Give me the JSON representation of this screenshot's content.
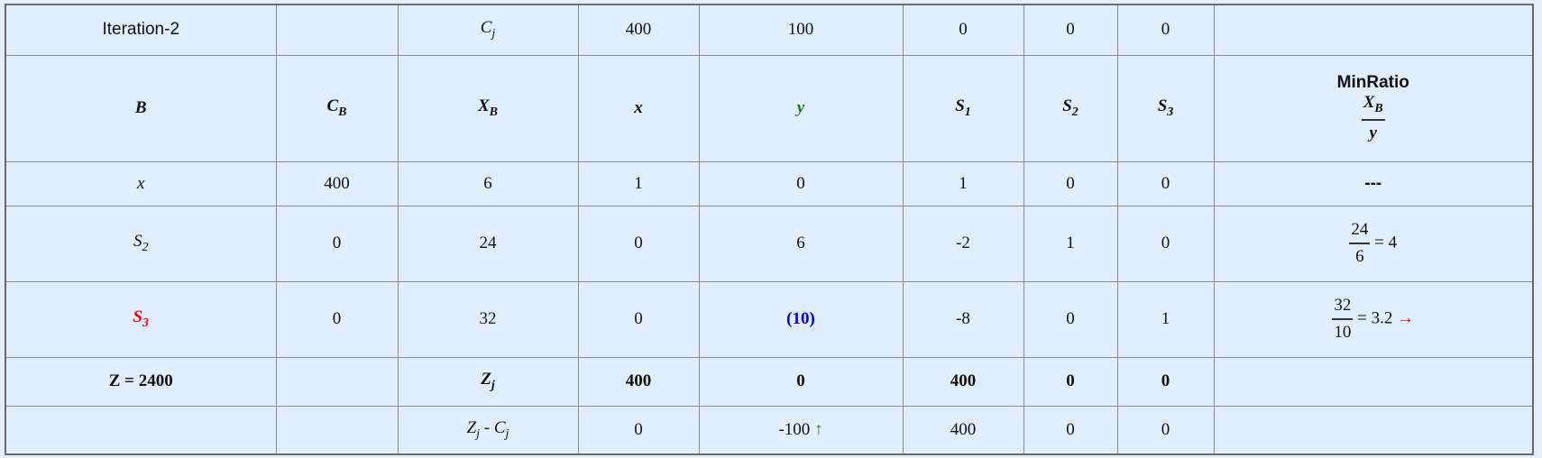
{
  "iteration_label": "Iteration-2",
  "cj_row": {
    "label_main": "C",
    "label_sub": "j",
    "values": [
      "400",
      "100",
      "0",
      "0",
      "0"
    ]
  },
  "header": {
    "b": "B",
    "cb_main": "C",
    "cb_sub": "B",
    "xb_main": "X",
    "xb_sub": "B",
    "x": "x",
    "y": "y",
    "s1_main": "S",
    "s1_sub": "1",
    "s2_main": "S",
    "s2_sub": "2",
    "s3_main": "S",
    "s3_sub": "3",
    "minratio": "MinRatio",
    "minratio_num_main": "X",
    "minratio_num_sub": "B",
    "minratio_den": "y"
  },
  "rows": [
    {
      "basis_main": "x",
      "basis_sub": "",
      "cb": "400",
      "xb": "6",
      "x": "1",
      "y": "0",
      "s1": "1",
      "s2": "0",
      "s3": "0",
      "ratio_text": "---"
    },
    {
      "basis_main": "S",
      "basis_sub": "2",
      "cb": "0",
      "xb": "24",
      "x": "0",
      "y": "6",
      "s1": "-2",
      "s2": "1",
      "s3": "0",
      "ratio_num": "24",
      "ratio_den": "6",
      "ratio_eq": "= 4"
    },
    {
      "basis_main": "S",
      "basis_sub": "3",
      "cb": "0",
      "xb": "32",
      "x": "0",
      "y": "(10)",
      "s1": "-8",
      "s2": "0",
      "s3": "1",
      "ratio_num": "32",
      "ratio_den": "10",
      "ratio_eq": "= 3.2",
      "ratio_arrow": "→"
    }
  ],
  "zj_row": {
    "z_label": "Z = 2400",
    "label_main": "Z",
    "label_sub": "j",
    "values": [
      "400",
      "0",
      "400",
      "0",
      "0"
    ]
  },
  "zjcj_row": {
    "label_z": "Z",
    "label_z_sub": "j",
    "label_mid": " - ",
    "label_c": "C",
    "label_c_sub": "j",
    "values": [
      "0",
      "-100",
      "400",
      "0",
      "0"
    ],
    "entering_arrow": "↑"
  },
  "colors": {
    "background": "#e0eefb",
    "entering_column": "#1a7a1a",
    "leaving_row": "#ff0000",
    "pivot": "#0000ee",
    "border": "#8a8a8a"
  }
}
